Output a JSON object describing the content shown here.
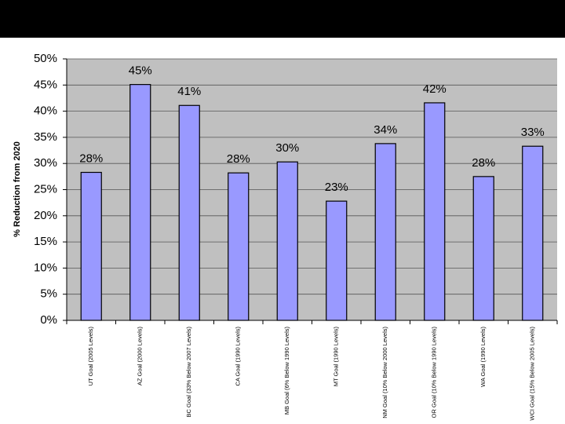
{
  "chart_data": {
    "type": "bar",
    "y_label": "% Reduction from 2020",
    "categories": [
      "UT Goal (2005 Levels)",
      "AZ Goal (2000 Levels)",
      "BC Goal (33% Below 2007 Levels)",
      "CA Goal (1990 Levels)",
      "MB Goal (6% Below 1990 Levels)",
      "MT Goal (1990 Levels)",
      "NM Goal (10% Below 2000 Levels)",
      "OR Goal (10% Below 1990 Levels)",
      "WA Goal (1990 Levels)",
      "WCI Goal (15% Below 2005 Levels)"
    ],
    "values": [
      28.3,
      45.1,
      41.1,
      28.2,
      30.3,
      22.8,
      33.8,
      41.6,
      27.5,
      33.3
    ],
    "value_labels": [
      "28%",
      "45%",
      "41%",
      "28%",
      "30%",
      "23%",
      "34%",
      "42%",
      "28%",
      "33%"
    ],
    "color": "#9999ff",
    "ylim": [
      0,
      50
    ],
    "yticks": [
      {
        "value": 0,
        "label": "0%"
      },
      {
        "value": 5,
        "label": "5%"
      },
      {
        "value": 10,
        "label": "10%"
      },
      {
        "value": 15,
        "label": "15%"
      },
      {
        "value": 20,
        "label": "20%"
      },
      {
        "value": 25,
        "label": "25%"
      },
      {
        "value": 30,
        "label": "30%"
      },
      {
        "value": 35,
        "label": "35%"
      },
      {
        "value": 40,
        "label": "40%"
      },
      {
        "value": 45,
        "label": "45%"
      },
      {
        "value": 50,
        "label": "50%"
      }
    ],
    "grid": true
  }
}
